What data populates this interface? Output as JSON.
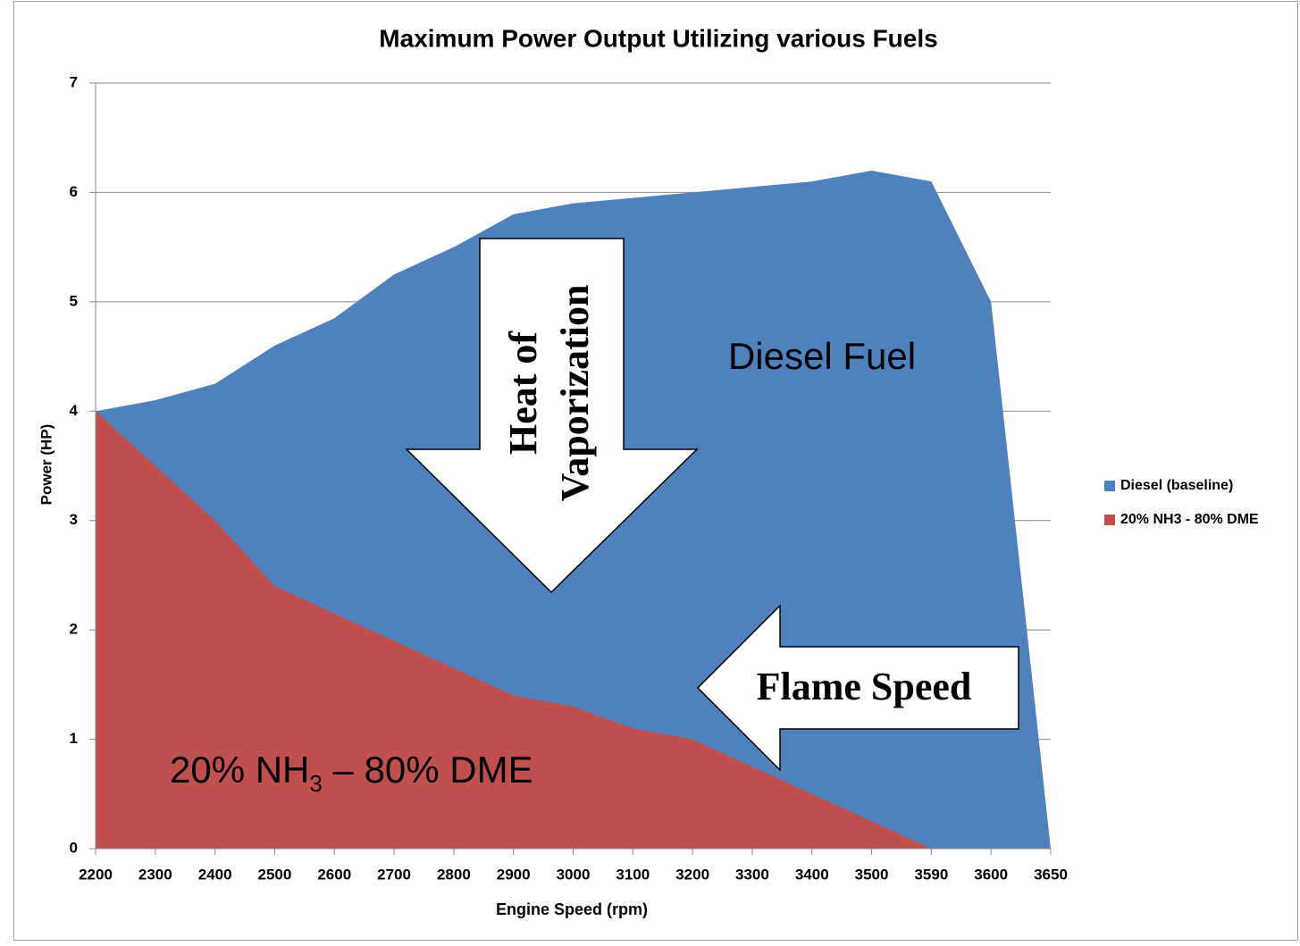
{
  "chart_data": {
    "type": "area",
    "title": "Maximum Power Output Utilizing various Fuels",
    "x_label": "Engine Speed (rpm)",
    "y_label": "Power (HP)",
    "categories": [
      "2200",
      "2300",
      "2400",
      "2500",
      "2600",
      "2700",
      "2800",
      "2900",
      "3000",
      "3100",
      "3200",
      "3300",
      "3400",
      "3500",
      "3590",
      "3600",
      "3650"
    ],
    "series": [
      {
        "name": "Diesel (baseline)",
        "color": "#4f81bd",
        "values": [
          4.0,
          4.1,
          4.25,
          4.6,
          4.85,
          5.25,
          5.5,
          5.8,
          5.9,
          5.95,
          6.0,
          6.05,
          6.1,
          6.2,
          6.1,
          5.0,
          0
        ]
      },
      {
        "name": "20% NH3 - 80% DME",
        "color": "#c0504d",
        "values": [
          4.0,
          3.5,
          3.0,
          2.4,
          2.15,
          1.9,
          1.65,
          1.4,
          1.3,
          1.1,
          1.0,
          0.75,
          0.5,
          0.25,
          0,
          null,
          null
        ]
      }
    ],
    "ylim": [
      0,
      7
    ],
    "yticks": [
      0,
      1,
      2,
      3,
      4,
      5,
      6,
      7
    ],
    "grid": true,
    "legend": "right",
    "annotations": {
      "diesel": "Diesel Fuel",
      "blend": [
        "20% NH",
        "3",
        " – 80% DME"
      ],
      "heat": [
        "Heat of",
        "Vaporization"
      ],
      "flame": "Flame Speed"
    }
  }
}
